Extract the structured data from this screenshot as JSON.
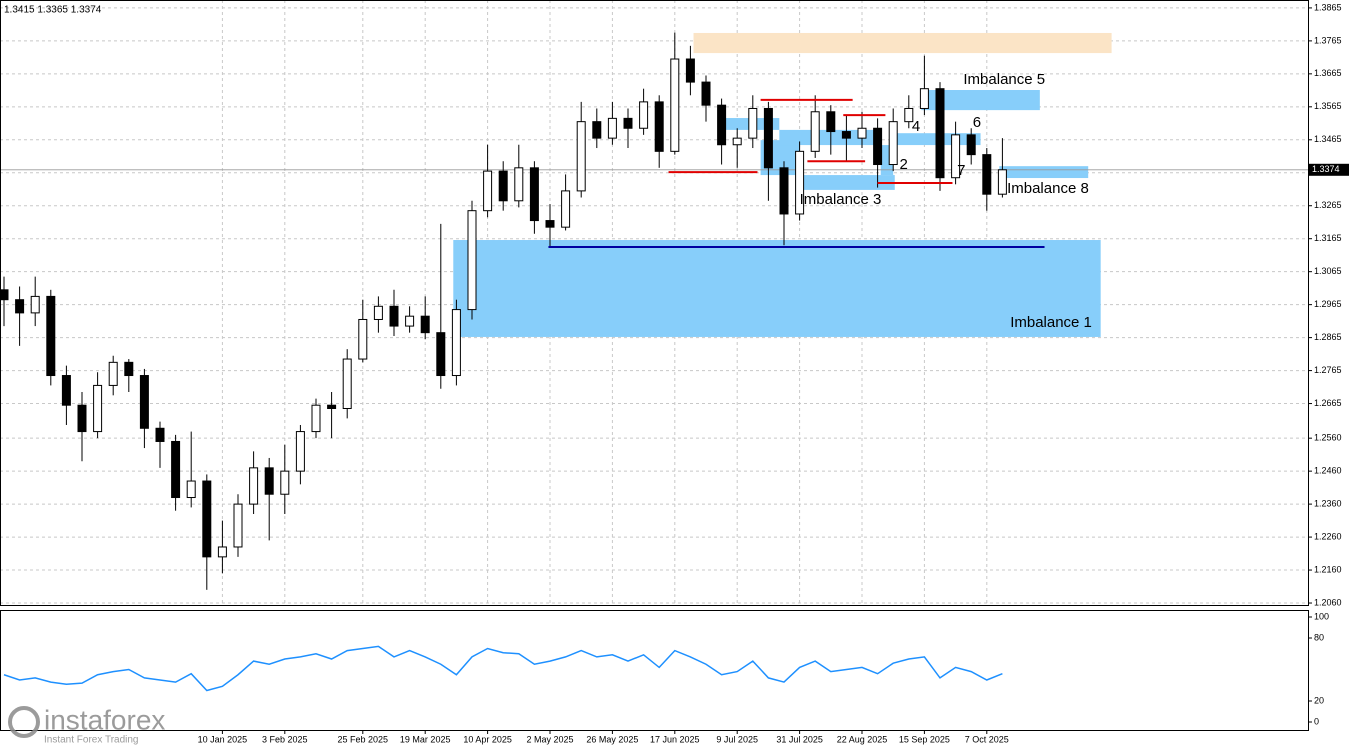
{
  "chart_data": [
    {
      "type": "candlestick",
      "header": "1.3415 1.3365 1.3374",
      "categories": [
        null,
        null,
        null,
        null,
        null,
        null,
        null,
        null,
        null,
        null,
        null,
        null,
        null,
        null,
        "10 Jan 2025",
        null,
        null,
        null,
        "3 Feb 2025",
        null,
        null,
        null,
        null,
        "25 Feb 2025",
        null,
        null,
        null,
        "19 Mar 2025",
        null,
        null,
        null,
        "10 Apr 2025",
        null,
        null,
        null,
        "2 May 2025",
        null,
        null,
        null,
        "26 May 2025",
        null,
        null,
        null,
        "17 Jun 2025",
        null,
        null,
        null,
        "9 Jul 2025",
        null,
        null,
        null,
        "31 Jul 2025",
        null,
        null,
        null,
        "22 Aug 2025",
        null,
        null,
        null,
        "15 Sep 2025",
        null,
        null,
        null,
        "7 Oct 2025",
        null
      ],
      "open": [
        1.301,
        1.298,
        1.294,
        1.299,
        1.275,
        1.266,
        1.258,
        1.272,
        1.279,
        1.275,
        1.259,
        1.255,
        1.238,
        1.243,
        1.22,
        1.223,
        1.236,
        1.247,
        1.239,
        1.246,
        1.258,
        1.266,
        1.265,
        1.28,
        1.292,
        1.296,
        1.29,
        1.293,
        1.288,
        1.275,
        1.295,
        1.325,
        1.337,
        1.328,
        1.338,
        1.322,
        1.32,
        1.331,
        1.352,
        1.347,
        1.353,
        1.35,
        1.358,
        1.343,
        1.371,
        1.364,
        1.357,
        1.345,
        1.347,
        1.356,
        1.338,
        1.324,
        1.343,
        1.355,
        1.349,
        1.347,
        1.35,
        1.339,
        1.352,
        1.356,
        1.362,
        1.335,
        1.348,
        1.342,
        1.33
      ],
      "high": [
        1.305,
        1.302,
        1.305,
        1.301,
        1.278,
        1.27,
        1.276,
        1.281,
        1.28,
        1.277,
        1.261,
        1.257,
        1.258,
        1.245,
        1.231,
        1.239,
        1.252,
        1.25,
        1.254,
        1.26,
        1.268,
        1.27,
        1.283,
        1.298,
        1.299,
        1.301,
        1.296,
        1.299,
        1.321,
        1.298,
        1.328,
        1.345,
        1.34,
        1.345,
        1.34,
        1.327,
        1.336,
        1.358,
        1.356,
        1.358,
        1.356,
        1.362,
        1.36,
        1.379,
        1.375,
        1.366,
        1.359,
        1.35,
        1.36,
        1.358,
        1.34,
        1.346,
        1.36,
        1.357,
        1.354,
        1.355,
        1.353,
        1.356,
        1.36,
        1.372,
        1.364,
        1.352,
        1.35,
        1.344,
        1.347
      ],
      "low": [
        1.29,
        1.284,
        1.29,
        1.272,
        1.26,
        1.249,
        1.256,
        1.269,
        1.27,
        1.253,
        1.247,
        1.234,
        1.235,
        1.21,
        1.215,
        1.22,
        1.233,
        1.225,
        1.233,
        1.242,
        1.256,
        1.256,
        1.262,
        1.279,
        1.288,
        1.287,
        1.288,
        1.286,
        1.271,
        1.272,
        1.292,
        1.323,
        1.325,
        1.326,
        1.318,
        1.314,
        1.319,
        1.329,
        1.344,
        1.345,
        1.344,
        1.348,
        1.338,
        1.342,
        1.36,
        1.352,
        1.339,
        1.338,
        1.344,
        1.328,
        1.3145,
        1.322,
        1.341,
        1.342,
        1.34,
        1.344,
        1.332,
        1.337,
        1.35,
        1.354,
        1.331,
        1.333,
        1.339,
        1.325,
        1.329
      ],
      "close": [
        1.298,
        1.294,
        1.299,
        1.275,
        1.266,
        1.258,
        1.272,
        1.279,
        1.275,
        1.259,
        1.255,
        1.238,
        1.243,
        1.22,
        1.223,
        1.236,
        1.247,
        1.239,
        1.246,
        1.258,
        1.266,
        1.265,
        1.28,
        1.292,
        1.296,
        1.29,
        1.293,
        1.288,
        1.275,
        1.295,
        1.325,
        1.337,
        1.328,
        1.338,
        1.322,
        1.32,
        1.331,
        1.352,
        1.347,
        1.353,
        1.35,
        1.358,
        1.343,
        1.371,
        1.364,
        1.357,
        1.345,
        1.347,
        1.356,
        1.338,
        1.324,
        1.343,
        1.355,
        1.349,
        1.347,
        1.35,
        1.339,
        1.352,
        1.356,
        1.362,
        1.335,
        1.348,
        1.342,
        1.33,
        1.3374
      ],
      "last_price": 1.3374,
      "ylim": [
        1.2054,
        1.3889
      ],
      "yticks": [
        1.3865,
        1.3765,
        1.3665,
        1.3565,
        1.3465,
        1.3365,
        1.3265,
        1.3165,
        1.3065,
        1.2965,
        1.2865,
        1.2765,
        1.2665,
        {
          "value": 1.256,
          "label": "1.2560"
        },
        {
          "value": 1.246,
          "label": "1.2460"
        },
        {
          "value": 1.236,
          "label": "1.2360"
        },
        {
          "value": 1.226,
          "label": "1.2260"
        },
        {
          "value": 1.216,
          "label": "1.2160"
        },
        {
          "value": 1.206,
          "label": "1.2060"
        }
      ],
      "grid": true,
      "zones": [
        {
          "from": 28.8,
          "to": 70.3,
          "top": 1.3161,
          "bottom": 1.2867,
          "color": "#87cefa"
        },
        {
          "from": 44.2,
          "to": 71,
          "top": 1.3789,
          "bottom": 1.3728,
          "color": "#fbe4c6"
        },
        {
          "from": 58.8,
          "to": 66.4,
          "top": 1.3616,
          "bottom": 1.3555,
          "color": "#87cefa"
        },
        {
          "from": 63.8,
          "to": 69.5,
          "top": 1.3385,
          "bottom": 1.3349,
          "color": "#87cefa"
        },
        {
          "from": 51,
          "to": 57.1,
          "top": 1.3358,
          "bottom": 1.3313,
          "color": "#87cefa"
        },
        {
          "from": 46.2,
          "to": 49.7,
          "top": 1.3531,
          "bottom": 1.3495,
          "color": "#87cefa"
        },
        {
          "from": 48.5,
          "to": 51,
          "top": 1.3464,
          "bottom": 1.3358,
          "color": "#87cefa"
        },
        {
          "from": 49.7,
          "to": 56.2,
          "top": 1.3495,
          "bottom": 1.3449,
          "color": "#87cefa"
        },
        {
          "from": 56.2,
          "to": 57,
          "top": 1.3449,
          "bottom": 1.3358,
          "color": "#87cefa"
        },
        {
          "from": 57,
          "to": 62.6,
          "top": 1.3485,
          "bottom": 1.3449,
          "color": "#87cefa"
        }
      ],
      "levels": [
        {
          "price": 1.3586,
          "from": 48.5,
          "to": 54.4,
          "color": "#e00000"
        },
        {
          "price": 1.3367,
          "from": 42.6,
          "to": 48.3,
          "color": "#e00000"
        },
        {
          "price": 1.354,
          "from": 53.8,
          "to": 56.5,
          "color": "#e00000"
        },
        {
          "price": 1.34,
          "from": 51.5,
          "to": 55.2,
          "color": "#e00000"
        },
        {
          "price": 1.3334,
          "from": 56,
          "to": 60.8,
          "color": "#e00000"
        },
        {
          "price": 1.314,
          "from": 34.9,
          "to": 66.7,
          "color": "#0000a0"
        }
      ],
      "annotations": [
        {
          "text": "Imbalance 5",
          "x": 61.5,
          "y": 1.3646
        },
        {
          "text": "Imbalance 3",
          "x": 51,
          "y": 1.3282
        },
        {
          "text": "Imbalance 8",
          "x": 64.3,
          "y": 1.3316
        },
        {
          "text": "Imbalance 1",
          "x": 64.5,
          "y": 1.2909
        },
        {
          "text": "2",
          "x": 57.4,
          "y": 1.3388
        },
        {
          "text": "4",
          "x": 58.2,
          "y": 1.3504
        },
        {
          "text": "6",
          "x": 62.1,
          "y": 1.3516
        },
        {
          "text": "7",
          "x": 61.1,
          "y": 1.337
        }
      ]
    },
    {
      "type": "line",
      "color": "#1e90ff",
      "values": [
        45,
        40,
        42,
        38,
        36,
        37,
        45,
        48,
        50,
        42,
        40,
        38,
        46,
        30,
        34,
        45,
        58,
        55,
        60,
        62,
        65,
        60,
        68,
        70,
        72,
        62,
        68,
        62,
        55,
        45,
        62,
        70,
        66,
        65,
        55,
        58,
        62,
        68,
        62,
        64,
        58,
        64,
        52,
        68,
        62,
        55,
        45,
        48,
        58,
        42,
        38,
        52,
        58,
        48,
        50,
        52,
        46,
        56,
        60,
        62,
        42,
        52,
        48,
        40,
        46
      ],
      "ylim": [
        0,
        100
      ],
      "yticks": [
        100,
        80,
        20,
        0
      ]
    }
  ],
  "watermark": {
    "name": "instaforex",
    "tagline": "Instant Forex Trading"
  }
}
